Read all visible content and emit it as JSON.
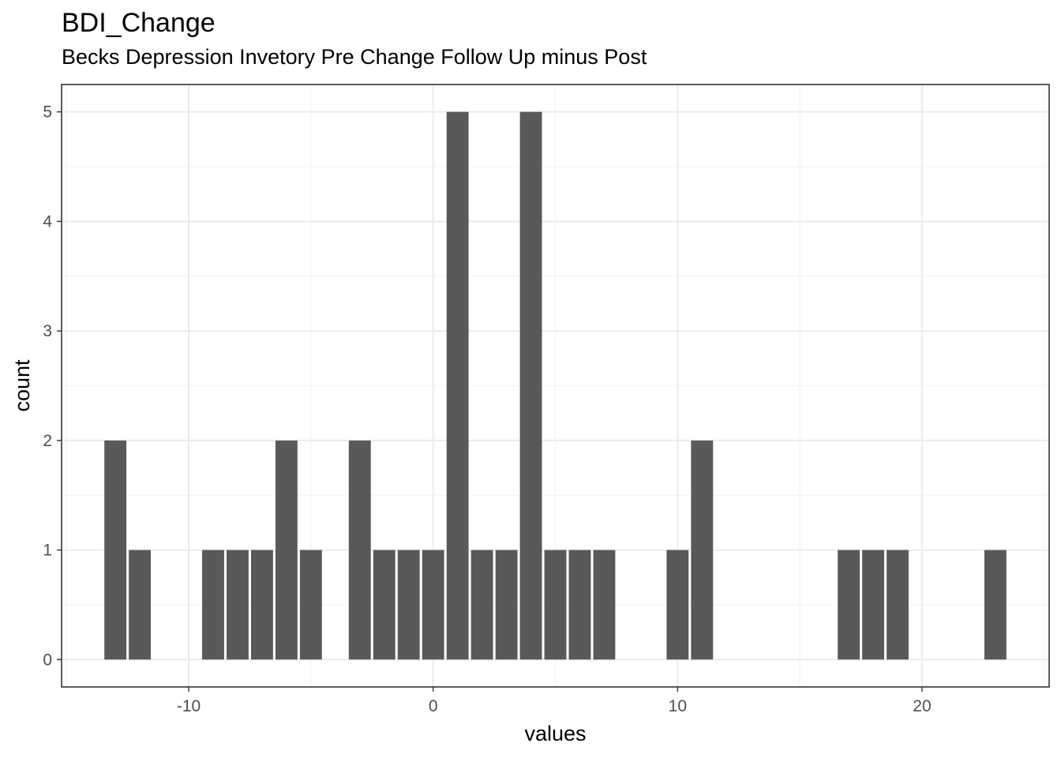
{
  "chart_data": {
    "type": "bar",
    "title": "BDI_Change",
    "subtitle": "Becks Depression Invetory Pre Change Follow Up minus Post",
    "xlabel": "values",
    "ylabel": "count",
    "x": [
      -13,
      -12,
      -9,
      -8,
      -7,
      -6,
      -5,
      -3,
      -2,
      -1,
      0,
      1,
      2,
      3,
      4,
      5,
      6,
      7,
      10,
      11,
      17,
      18,
      19,
      23
    ],
    "values": [
      2,
      1,
      1,
      1,
      1,
      2,
      1,
      2,
      1,
      1,
      1,
      5,
      1,
      1,
      5,
      1,
      1,
      1,
      1,
      2,
      1,
      1,
      1,
      1
    ],
    "xlim": [
      -15.2,
      25.2
    ],
    "ylim": [
      -0.25,
      5.25
    ],
    "xticks": [
      -10,
      0,
      10,
      20
    ],
    "xtick_labels": [
      "-10",
      "0",
      "10",
      "20"
    ],
    "yticks": [
      0,
      1,
      2,
      3,
      4,
      5
    ],
    "ytick_labels": [
      "0",
      "1",
      "2",
      "3",
      "4",
      "5"
    ],
    "grid": true,
    "bar_color": "#595959"
  }
}
